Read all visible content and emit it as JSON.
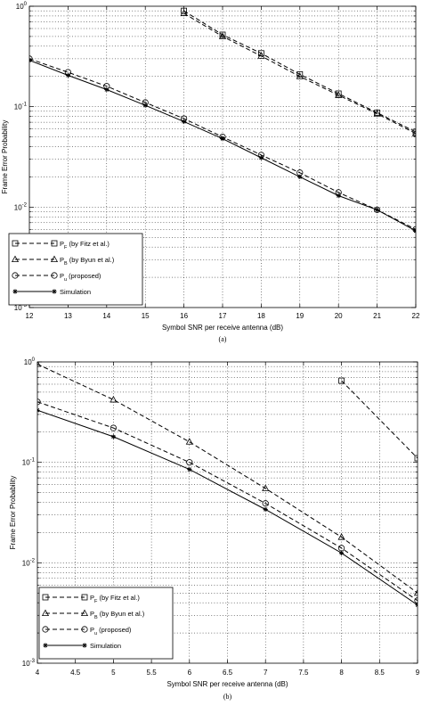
{
  "chart_data": [
    {
      "type": "line",
      "caption": "(a)",
      "xlabel": "Symbol SNR per receive antenna (dB)",
      "ylabel": "Frame Error Probability",
      "xlim": [
        12,
        22
      ],
      "ylim": [
        0.001,
        1
      ],
      "yscale": "log",
      "grid": true,
      "legend_position": "bottom-left",
      "x_ticks": [
        "12",
        "13",
        "14",
        "15",
        "16",
        "17",
        "18",
        "19",
        "20",
        "21",
        "22"
      ],
      "series": [
        {
          "name": "P_F (by Fitz et al.)",
          "marker": "square",
          "dash": true,
          "x": [
            16,
            17,
            18,
            19,
            20,
            21,
            22
          ],
          "y": [
            0.9,
            0.52,
            0.34,
            0.21,
            0.135,
            0.087,
            0.056
          ]
        },
        {
          "name": "P_B (by Byun et al.)",
          "marker": "triangle",
          "dash": true,
          "x": [
            16,
            17,
            18,
            19,
            20,
            21,
            22
          ],
          "y": [
            0.85,
            0.5,
            0.32,
            0.2,
            0.13,
            0.085,
            0.054
          ]
        },
        {
          "name": "P_u (proposed)",
          "marker": "circle",
          "dash": true,
          "x": [
            12,
            13,
            14,
            15,
            16,
            17,
            18,
            19,
            20,
            21,
            22
          ],
          "y": [
            0.3,
            0.22,
            0.16,
            0.11,
            0.076,
            0.05,
            0.033,
            0.022,
            0.014,
            0.0094,
            0.006
          ]
        },
        {
          "name": "Simulation",
          "marker": "asterisk",
          "dash": false,
          "x": [
            12,
            13,
            14,
            15,
            16,
            17,
            18,
            19,
            20,
            21,
            22
          ],
          "y": [
            0.29,
            0.205,
            0.148,
            0.103,
            0.071,
            0.048,
            0.031,
            0.02,
            0.013,
            0.0094,
            0.0058
          ]
        }
      ]
    },
    {
      "type": "line",
      "caption": "(b)",
      "xlabel": "Symbol SNR per receive antenna (dB)",
      "ylabel": "Frame Error Probability",
      "xlim": [
        4,
        9
      ],
      "ylim": [
        0.001,
        1
      ],
      "yscale": "log",
      "grid": true,
      "legend_position": "bottom-left",
      "x_ticks": [
        "4",
        "4.5",
        "5",
        "5.5",
        "6",
        "6.5",
        "7",
        "7.5",
        "8",
        "8.5",
        "9"
      ],
      "series": [
        {
          "name": "P_F (by Fitz et al.)",
          "marker": "square",
          "dash": true,
          "x": [
            8,
            9
          ],
          "y": [
            0.65,
            0.11
          ]
        },
        {
          "name": "P_B (by Byun et al.)",
          "marker": "triangle",
          "dash": true,
          "x": [
            4,
            5,
            6,
            7,
            8,
            9
          ],
          "y": [
            0.95,
            0.42,
            0.16,
            0.055,
            0.018,
            0.005
          ]
        },
        {
          "name": "P_u (proposed)",
          "marker": "circle",
          "dash": true,
          "x": [
            4,
            5,
            6,
            7,
            8,
            9
          ],
          "y": [
            0.4,
            0.22,
            0.1,
            0.039,
            0.014,
            0.0042
          ]
        },
        {
          "name": "Simulation",
          "marker": "asterisk",
          "dash": false,
          "x": [
            4,
            5,
            6,
            7,
            8,
            9
          ],
          "y": [
            0.33,
            0.18,
            0.085,
            0.034,
            0.0125,
            0.0038
          ]
        }
      ]
    }
  ],
  "legend_labels": [
    {
      "main": "P",
      "sub": "F",
      "rest": " (by Fitz et al.)"
    },
    {
      "main": "P",
      "sub": "B",
      "rest": " (by Byun et al.)"
    },
    {
      "main": "P",
      "sub": "u",
      "rest": " (proposed)"
    },
    {
      "main": "Simulation",
      "sub": "",
      "rest": ""
    }
  ],
  "y_tick_labels": [
    {
      "base": "10",
      "exp": "0"
    },
    {
      "base": "10",
      "exp": "-1"
    },
    {
      "base": "10",
      "exp": "-2"
    },
    {
      "base": "10",
      "exp": "-3"
    }
  ]
}
